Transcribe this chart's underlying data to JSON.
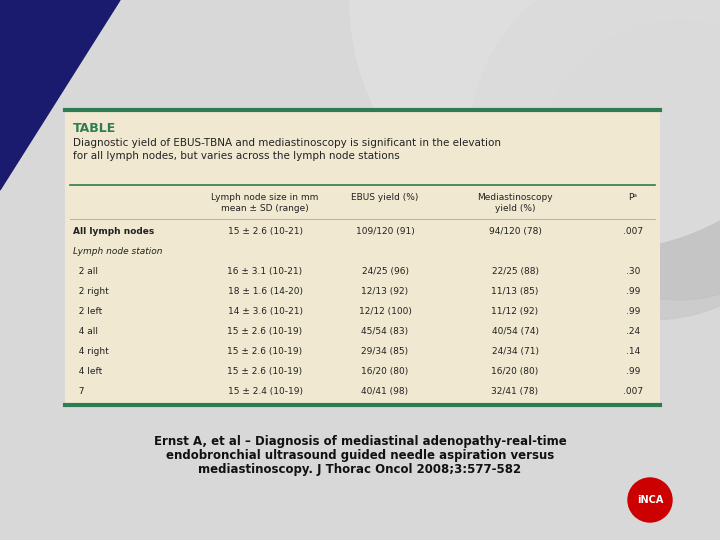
{
  "bg_color": "#e8e0c8",
  "slide_bg": "#f0f0f0",
  "table_label": "TABLE",
  "table_label_color": "#2e7d52",
  "title_text": "Diagnostic yield of EBUS-TBNA and mediastinoscopy is significant in the elevation\nfor all lymph nodes, but varies across the lymph node stations",
  "header_row1": [
    "",
    "Lymph node size in mm\nmean ± SD (range)",
    "EBUS yield (%)",
    "Mediastinoscopy\nyield (%)",
    "Pᵃ"
  ],
  "col_headers": [
    "",
    "Lymph node size in mm\nmean ± SD (range)",
    "EBUS yield (%)",
    "Mediastinoscopy\nyield (%)",
    "Pa"
  ],
  "rows": [
    [
      "All lymph nodes",
      "15 ± 2.6 (10-21)",
      "109/120 (91)",
      "94/120 (78)",
      ".007"
    ],
    [
      "Lymph node station",
      "",
      "",
      "",
      ""
    ],
    [
      "  2 all",
      "16 ± 3.1 (10-21)",
      "24/25 (96)",
      "22/25 (88)",
      ".30"
    ],
    [
      "  2 right",
      "18 ± 1.6 (14-20)",
      "12/13 (92)",
      "11/13 (85)",
      ".99"
    ],
    [
      "  2 left",
      "14 ± 3.6 (10-21)",
      "12/12 (100)",
      "11/12 (92)",
      ".99"
    ],
    [
      "  4 all",
      "15 ± 2.6 (10-19)",
      "45/54 (83)",
      "40/54 (74)",
      ".24"
    ],
    [
      "  4 right",
      "15 ± 2.6 (10-19)",
      "29/34 (85)",
      "24/34 (71)",
      ".14"
    ],
    [
      "  4 left",
      "15 ± 2.6 (10-19)",
      "16/20 (80)",
      "16/20 (80)",
      ".99"
    ],
    [
      "  7",
      "15 ± 2.4 (10-19)",
      "40/41 (98)",
      "32/41 (78)",
      ".007"
    ]
  ],
  "caption_line1": "Ernst A, et al – Diagnosis of mediastinal adenopathy-real-time",
  "caption_line2": "endobronchial ultrasound guided needle aspiration versus",
  "caption_line3": "mediastinoscopy. J Thorac Oncol 2008;3:577-582",
  "teal_line_color": "#2e7d52",
  "dark_navy": "#1a1a6e",
  "text_color": "#222222"
}
